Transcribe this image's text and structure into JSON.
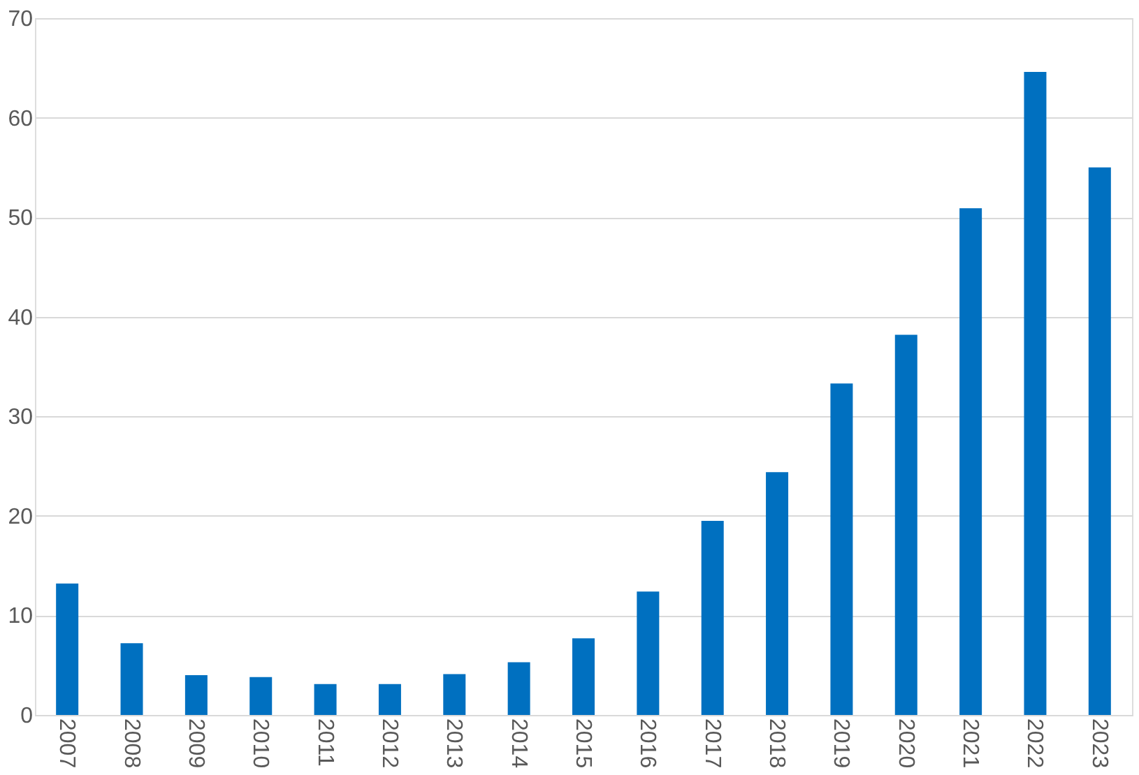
{
  "chart_data": {
    "type": "bar",
    "categories": [
      "2007",
      "2008",
      "2009",
      "2010",
      "2011",
      "2012",
      "2013",
      "2014",
      "2015",
      "2016",
      "2017",
      "2018",
      "2019",
      "2020",
      "2021",
      "2022",
      "2023"
    ],
    "values": [
      13.2,
      7.2,
      4.0,
      3.8,
      3.1,
      3.1,
      4.1,
      5.3,
      7.7,
      12.4,
      19.5,
      24.4,
      33.3,
      38.2,
      50.9,
      64.6,
      55.0
    ],
    "color": "#0070c0",
    "ylim": [
      0,
      70
    ],
    "yticks": [
      0,
      10,
      20,
      30,
      40,
      50,
      60,
      70
    ],
    "grid": "y"
  }
}
